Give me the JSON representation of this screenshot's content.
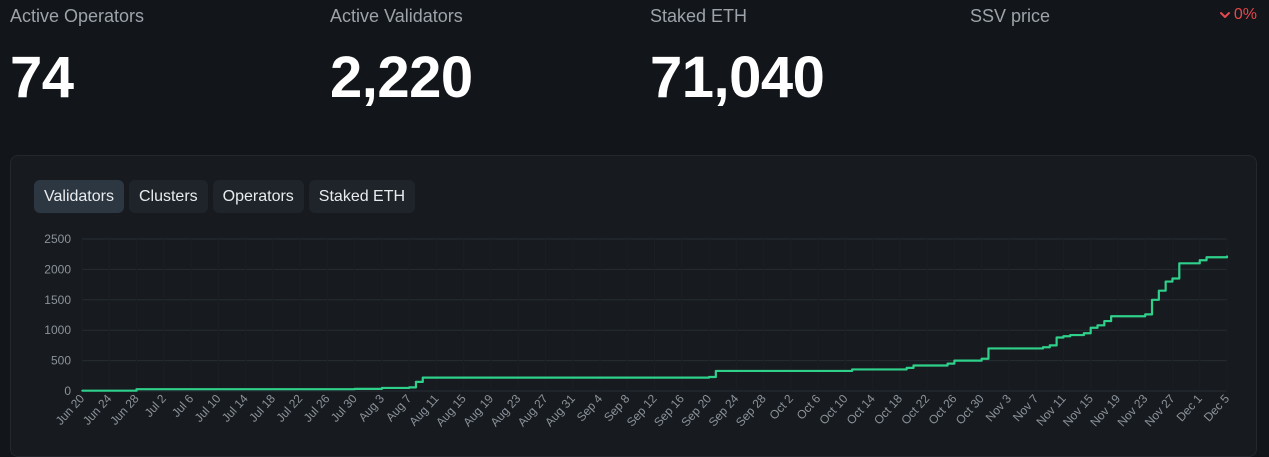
{
  "stats": [
    {
      "label": "Active Operators",
      "value": "74"
    },
    {
      "label": "Active Validators",
      "value": "2,220"
    },
    {
      "label": "Staked ETH",
      "value": "71,040"
    },
    {
      "label": "SSV price",
      "value": ""
    }
  ],
  "price_change": {
    "text": "0%",
    "color": "#e5484d",
    "icon": "chevron-down-icon"
  },
  "tabs": [
    {
      "label": "Validators",
      "active": true
    },
    {
      "label": "Clusters",
      "active": false
    },
    {
      "label": "Operators",
      "active": false
    },
    {
      "label": "Staked ETH",
      "active": false
    }
  ],
  "chart_data": {
    "type": "line",
    "title": "",
    "xlabel": "",
    "ylabel": "",
    "ylim": [
      0,
      2500
    ],
    "yticks": [
      0,
      500,
      1000,
      1500,
      2000,
      2500
    ],
    "grid": true,
    "line_color": "#2fd08a",
    "xtick_labels": [
      "Jun 20",
      "Jun 24",
      "Jun 28",
      "Jul 2",
      "Jul 6",
      "Jul 10",
      "Jul 14",
      "Jul 18",
      "Jul 22",
      "Jul 26",
      "Jul 30",
      "Aug 3",
      "Aug 7",
      "Aug 11",
      "Aug 15",
      "Aug 19",
      "Aug 23",
      "Aug 27",
      "Aug 31",
      "Sep 4",
      "Sep 8",
      "Sep 12",
      "Sep 16",
      "Sep 20",
      "Sep 24",
      "Sep 28",
      "Oct 2",
      "Oct 6",
      "Oct 10",
      "Oct 14",
      "Oct 18",
      "Oct 22",
      "Oct 26",
      "Oct 30",
      "Nov 3",
      "Nov 7",
      "Nov 11",
      "Nov 15",
      "Nov 19",
      "Nov 23",
      "Nov 27",
      "Dec 1",
      "Dec 5"
    ],
    "series": [
      {
        "name": "",
        "x": [
          "Jun 20",
          "Jun 28",
          "Jul 30",
          "Aug 3",
          "Aug 7",
          "Aug 8",
          "Aug 9",
          "Sep 20",
          "Sep 21",
          "Sep 22",
          "Oct 10",
          "Oct 11",
          "Oct 19",
          "Oct 20",
          "Oct 25",
          "Oct 26",
          "Oct 30",
          "Oct 31",
          "Nov 7",
          "Nov 8",
          "Nov 9",
          "Nov 10",
          "Nov 11",
          "Nov 12",
          "Nov 14",
          "Nov 15",
          "Nov 16",
          "Nov 17",
          "Nov 18",
          "Nov 23",
          "Nov 24",
          "Nov 25",
          "Nov 26",
          "Nov 27",
          "Nov 28",
          "Dec 1",
          "Dec 2",
          "Dec 5"
        ],
        "y": [
          5,
          30,
          35,
          50,
          60,
          150,
          220,
          230,
          330,
          330,
          330,
          355,
          380,
          420,
          450,
          500,
          530,
          700,
          700,
          720,
          750,
          880,
          900,
          920,
          950,
          1040,
          1080,
          1150,
          1230,
          1260,
          1500,
          1650,
          1800,
          1850,
          2100,
          2150,
          2200,
          2220
        ]
      }
    ]
  }
}
